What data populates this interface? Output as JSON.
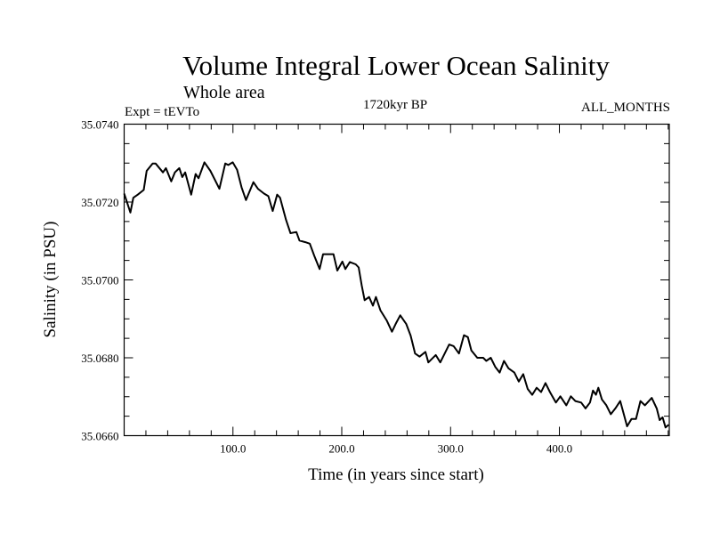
{
  "chart_data": {
    "type": "line",
    "title": "Volume Integral Lower Ocean Salinity",
    "subtitle": "Whole area",
    "experiment_label": "Expt = tEVTo",
    "period_label": "1720kyr BP",
    "months_label": "ALL_MONTHS",
    "xlabel": "Time (in years since start)",
    "ylabel": "Salinity (in PSU)",
    "xlim": [
      0,
      501
    ],
    "ylim": [
      35.066,
      35.074
    ],
    "x_ticks": [
      100,
      200,
      300,
      400
    ],
    "x_tick_labels": [
      "100.0",
      "200.0",
      "300.0",
      "400.0"
    ],
    "x_minor_step": 20,
    "y_ticks": [
      35.066,
      35.068,
      35.07,
      35.072,
      35.074
    ],
    "y_tick_labels": [
      "35.0660",
      "35.0680",
      "35.0700",
      "35.0720",
      "35.0740"
    ],
    "y_minor_step": 0.0005,
    "grid": false,
    "line_color": "#000000",
    "series": [
      {
        "name": "salinity",
        "x": [
          0,
          5.7,
          8.4,
          12.5,
          18.0,
          20.7,
          26.2,
          28.9,
          35.7,
          38.4,
          43.3,
          46.6,
          50.7,
          53.4,
          56.1,
          61.6,
          65.7,
          68.4,
          73.8,
          79.3,
          87.5,
          92.9,
          95.7,
          99.8,
          103.8,
          107.9,
          112.0,
          118.8,
          122.9,
          128.4,
          132.5,
          136.5,
          140.6,
          143.3,
          148.8,
          152.9,
          158.3,
          161.1,
          166.5,
          170.6,
          174.7,
          179.6,
          182.8,
          188.3,
          192.4,
          195.9,
          200.6,
          203.3,
          207.4,
          212.8,
          215.5,
          218.3,
          221.0,
          225.1,
          228.6,
          231.4,
          235.5,
          241.5,
          246.1,
          249.6,
          253.7,
          259.2,
          263.3,
          267.4,
          271.5,
          276.9,
          279.6,
          286.4,
          290.5,
          298.7,
          302.8,
          307.7,
          312.3,
          315.9,
          319.1,
          324.6,
          330.0,
          332.8,
          336.9,
          341.0,
          345.1,
          349.1,
          353.2,
          358.6,
          362.7,
          366.8,
          370.9,
          375.0,
          379.1,
          383.2,
          387.2,
          391.3,
          396.8,
          400.9,
          406.4,
          410.5,
          414.6,
          420.0,
          424.0,
          428.1,
          430.9,
          433.6,
          435.8,
          439.1,
          443.2,
          447.3,
          451.4,
          455.9,
          462.2,
          466.3,
          470.4,
          474.5,
          478.6,
          484.9,
          489.5,
          492.2,
          494.9,
          497.6,
          500.4
        ],
        "y": [
          35.07222,
          35.07173,
          35.07211,
          35.07219,
          35.07231,
          35.0728,
          35.07299,
          35.07299,
          35.07276,
          35.07287,
          35.07253,
          35.07276,
          35.07287,
          35.07264,
          35.07276,
          35.07219,
          35.07272,
          35.07261,
          35.07302,
          35.0728,
          35.07234,
          35.07299,
          35.07295,
          35.07302,
          35.07283,
          35.07238,
          35.07205,
          35.07251,
          35.07234,
          35.07222,
          35.07215,
          35.07177,
          35.07219,
          35.07211,
          35.07154,
          35.0712,
          35.07123,
          35.07101,
          35.07097,
          35.07093,
          35.07062,
          35.07028,
          35.07066,
          35.07066,
          35.07066,
          35.07024,
          35.07047,
          35.07028,
          35.07046,
          35.0704,
          35.07032,
          35.06986,
          35.06948,
          35.06956,
          35.06934,
          35.06956,
          35.06922,
          35.06895,
          35.06867,
          35.06887,
          35.06909,
          35.06887,
          35.06857,
          35.06811,
          35.06803,
          35.06815,
          35.06788,
          35.06807,
          35.06788,
          35.06834,
          35.0683,
          35.06811,
          35.06858,
          35.06853,
          35.06819,
          35.068,
          35.068,
          35.06792,
          35.068,
          35.06777,
          35.06762,
          35.06792,
          35.06773,
          35.06762,
          35.06739,
          35.06758,
          35.0672,
          35.06705,
          35.06723,
          35.06712,
          35.06735,
          35.06712,
          35.06685,
          35.06701,
          35.06678,
          35.06701,
          35.06689,
          35.06685,
          35.0667,
          35.06685,
          35.06716,
          35.06705,
          35.06723,
          35.06693,
          35.06678,
          35.06655,
          35.0667,
          35.06689,
          35.06624,
          35.06643,
          35.06643,
          35.06689,
          35.06678,
          35.06697,
          35.0667,
          35.0664,
          35.06647,
          35.06621,
          35.06628
        ]
      }
    ]
  }
}
